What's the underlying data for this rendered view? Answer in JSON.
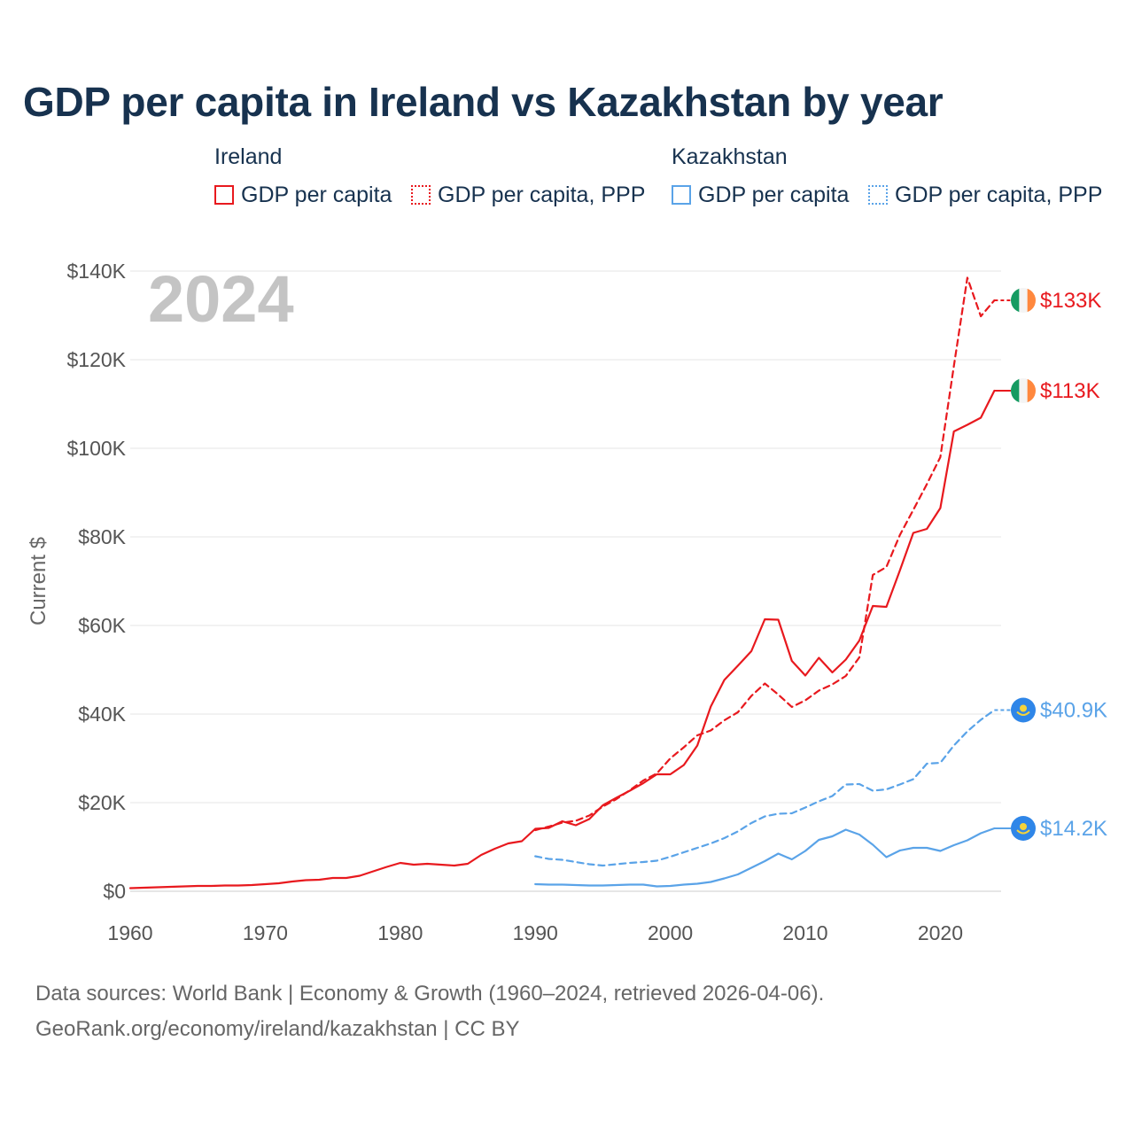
{
  "title": "GDP per capita in Ireland vs Kazakhstan by year",
  "legend": {
    "ireland": {
      "group": "Ireland",
      "gdp": "GDP per capita",
      "ppp": "GDP per capita, PPP",
      "color": "#e8191e"
    },
    "kazakhstan": {
      "group": "Kazakhstan",
      "gdp": "GDP per capita",
      "ppp": "GDP per capita, PPP",
      "color": "#5aa3e8"
    }
  },
  "footer": {
    "line1": "Data sources: World Bank | Economy & Growth (1960–2024, retrieved 2026-04-06).",
    "line2": "GeoRank.org/economy/ireland/kazakhstan | CC BY"
  },
  "chart_data": {
    "type": "line",
    "title": "GDP per capita in Ireland vs Kazakhstan by year",
    "year_label": "2024",
    "ylabel": "Current $",
    "xlabel": "",
    "xlim": [
      1960,
      2024.5
    ],
    "ylim": [
      0,
      140000
    ],
    "grid": true,
    "x_ticks": [
      1960,
      1970,
      1980,
      1990,
      2000,
      2010,
      2020
    ],
    "x_tick_labels": [
      "1960",
      "1970",
      "1980",
      "1990",
      "2000",
      "2010",
      "2020"
    ],
    "y_ticks": [
      0,
      20000,
      40000,
      60000,
      80000,
      100000,
      120000,
      140000
    ],
    "y_tick_labels": [
      "$0",
      "$20K",
      "$40K",
      "$60K",
      "$80K",
      "$100K",
      "$120K",
      "$140K"
    ],
    "series": [
      {
        "name": "Ireland GDP per capita",
        "country": "ireland",
        "style": "solid",
        "color": "#e8191e",
        "end_label": "$113K",
        "x": [
          1960,
          1961,
          1962,
          1963,
          1964,
          1965,
          1966,
          1967,
          1968,
          1969,
          1970,
          1971,
          1972,
          1973,
          1974,
          1975,
          1976,
          1977,
          1978,
          1979,
          1980,
          1981,
          1982,
          1983,
          1984,
          1985,
          1986,
          1987,
          1988,
          1989,
          1990,
          1991,
          1992,
          1993,
          1994,
          1995,
          1996,
          1997,
          1998,
          1999,
          2000,
          2001,
          2002,
          2003,
          2004,
          2005,
          2006,
          2007,
          2008,
          2009,
          2010,
          2011,
          2012,
          2013,
          2014,
          2015,
          2016,
          2017,
          2018,
          2019,
          2020,
          2021,
          2022,
          2023,
          2024
        ],
        "values": [
          700,
          800,
          900,
          1000,
          1100,
          1200,
          1200,
          1300,
          1300,
          1400,
          1600,
          1800,
          2200,
          2500,
          2600,
          3000,
          3000,
          3500,
          4500,
          5500,
          6400,
          6000,
          6200,
          6000,
          5800,
          6200,
          8200,
          9600,
          10800,
          11300,
          14100,
          14300,
          15800,
          14900,
          16300,
          19400,
          21100,
          22700,
          24400,
          26400,
          26400,
          28500,
          32900,
          41700,
          47700,
          50900,
          54200,
          61400,
          61300,
          52000,
          48700,
          52700,
          49400,
          52300,
          56600,
          64400,
          64200,
          72400,
          80900,
          81800,
          86500,
          103800,
          105300,
          106900,
          113000
        ]
      },
      {
        "name": "Ireland GDP per capita, PPP",
        "country": "ireland",
        "style": "dashed",
        "color": "#e8191e",
        "end_label": "$133K",
        "x": [
          1990,
          1991,
          1992,
          1993,
          1994,
          1995,
          1996,
          1997,
          1998,
          1999,
          2000,
          2001,
          2002,
          2003,
          2004,
          2005,
          2006,
          2007,
          2008,
          2009,
          2010,
          2011,
          2012,
          2013,
          2014,
          2015,
          2016,
          2017,
          2018,
          2019,
          2020,
          2021,
          2022,
          2023,
          2024
        ],
        "values": [
          13800,
          14600,
          15500,
          15900,
          17100,
          19100,
          20800,
          22800,
          25000,
          26600,
          30000,
          32500,
          35200,
          36300,
          38600,
          40400,
          44100,
          46900,
          44400,
          41600,
          43100,
          45300,
          46700,
          48600,
          52800,
          71400,
          73200,
          80400,
          86100,
          91900,
          98000,
          118600,
          138500,
          129800,
          133400
        ]
      },
      {
        "name": "Kazakhstan GDP per capita",
        "country": "kazakhstan",
        "style": "solid",
        "color": "#5aa3e8",
        "end_label": "$14.2K",
        "x": [
          1990,
          1991,
          1992,
          1993,
          1994,
          1995,
          1996,
          1997,
          1998,
          1999,
          2000,
          2001,
          2002,
          2003,
          2004,
          2005,
          2006,
          2007,
          2008,
          2009,
          2010,
          2011,
          2012,
          2013,
          2014,
          2015,
          2016,
          2017,
          2018,
          2019,
          2020,
          2021,
          2022,
          2023,
          2024
        ],
        "values": [
          1600,
          1500,
          1500,
          1400,
          1300,
          1300,
          1400,
          1500,
          1500,
          1100,
          1200,
          1500,
          1700,
          2100,
          2900,
          3800,
          5300,
          6800,
          8500,
          7200,
          9100,
          11600,
          12400,
          13900,
          12800,
          10500,
          7700,
          9200,
          9800,
          9800,
          9100,
          10400,
          11500,
          13100,
          14200
        ]
      },
      {
        "name": "Kazakhstan GDP per capita, PPP",
        "country": "kazakhstan",
        "style": "dashed",
        "color": "#5aa3e8",
        "end_label": "$40.9K",
        "x": [
          1990,
          1991,
          1992,
          1993,
          1994,
          1995,
          1996,
          1997,
          1998,
          1999,
          2000,
          2001,
          2002,
          2003,
          2004,
          2005,
          2006,
          2007,
          2008,
          2009,
          2010,
          2011,
          2012,
          2013,
          2014,
          2015,
          2016,
          2017,
          2018,
          2019,
          2020,
          2021,
          2022,
          2023,
          2024
        ],
        "values": [
          7900,
          7300,
          7100,
          6600,
          6100,
          5800,
          6100,
          6400,
          6600,
          6900,
          7800,
          8800,
          9800,
          10800,
          12000,
          13500,
          15400,
          16900,
          17500,
          17600,
          18900,
          20300,
          21500,
          24100,
          24200,
          22700,
          23000,
          24100,
          25300,
          28800,
          29000,
          32900,
          36100,
          38700,
          40900
        ]
      }
    ]
  }
}
